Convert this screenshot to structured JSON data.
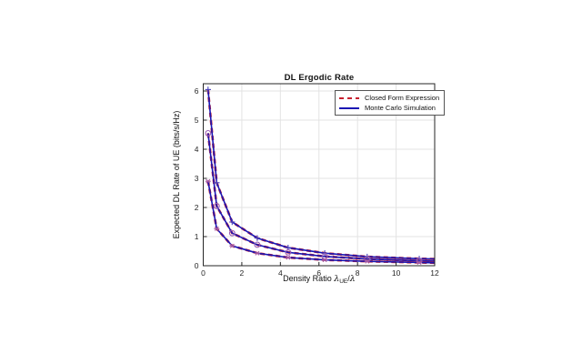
{
  "figure": {
    "background": "#ffffff"
  },
  "chart_data": {
    "type": "line",
    "title": "DL Ergodic Rate",
    "xlabel": "Density Ratio λ_UE/λ",
    "xlabel_parts": {
      "text": "Density Ratio ",
      "lambda": "λ",
      "sub": "UE",
      "slash": "/"
    },
    "ylabel": "Expected DL Rate of UE (bits/s/Hz)",
    "xlim": [
      0,
      12
    ],
    "ylim": [
      0,
      6.25
    ],
    "xticks": [
      0,
      2,
      4,
      6,
      8,
      10,
      12
    ],
    "yticks": [
      0,
      1,
      2,
      3,
      4,
      5,
      6
    ],
    "grid": true,
    "grid_color": "#e3e3e3",
    "axes_color": "#262626",
    "legend_position": "upper-right",
    "x": [
      0.25,
      0.7,
      1.5,
      2.8,
      4.4,
      6.3,
      8.5,
      11.2,
      12
    ],
    "marker_count": 8,
    "series": [
      {
        "name": "Closed Form Expression",
        "color": "#c8202f",
        "style": "dashed"
      },
      {
        "name": "Monte Carlo Simulation",
        "color": "#1a17b3",
        "style": "solid"
      }
    ],
    "curves": [
      {
        "marker": "plus",
        "marker_color": "#4a44bd",
        "values": [
          6.05,
          2.85,
          1.5,
          0.95,
          0.62,
          0.43,
          0.31,
          0.24,
          0.23
        ]
      },
      {
        "marker": "circle",
        "marker_color": "#9a5fb5",
        "values": [
          4.55,
          2.05,
          1.12,
          0.72,
          0.46,
          0.32,
          0.23,
          0.17,
          0.16
        ]
      },
      {
        "marker": "star",
        "marker_color": "#a558a0",
        "values": [
          2.9,
          1.27,
          0.68,
          0.43,
          0.28,
          0.2,
          0.15,
          0.11,
          0.1
        ]
      }
    ]
  }
}
